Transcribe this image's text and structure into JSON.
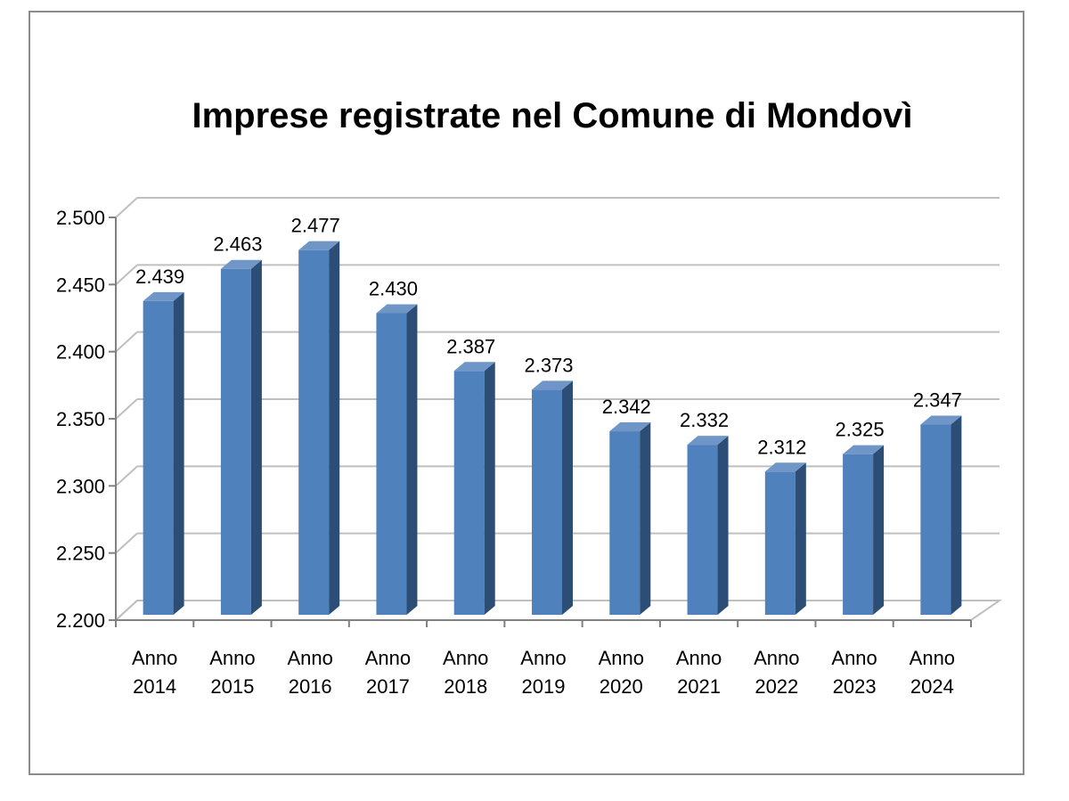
{
  "chart_data": {
    "type": "bar",
    "title": "Imprese registrate nel Comune di Mondovì",
    "xlabel": "",
    "ylabel": "",
    "categories": [
      [
        "Anno",
        "2014"
      ],
      [
        "Anno",
        "2015"
      ],
      [
        "Anno",
        "2016"
      ],
      [
        "Anno",
        "2017"
      ],
      [
        "Anno",
        "2018"
      ],
      [
        "Anno",
        "2019"
      ],
      [
        "Anno",
        "2020"
      ],
      [
        "Anno",
        "2021"
      ],
      [
        "Anno",
        "2022"
      ],
      [
        "Anno",
        "2023"
      ],
      [
        "Anno",
        "2024"
      ]
    ],
    "values": [
      2439,
      2463,
      2477,
      2430,
      2387,
      2373,
      2342,
      2332,
      2312,
      2325,
      2347
    ],
    "value_labels": [
      "2.439",
      "2.463",
      "2.477",
      "2.430",
      "2.387",
      "2.373",
      "2.342",
      "2.332",
      "2.312",
      "2.325",
      "2.347"
    ],
    "ylim": [
      2200,
      2500
    ],
    "y_ticks": [
      2200,
      2250,
      2300,
      2350,
      2400,
      2450,
      2500
    ],
    "y_tick_labels": [
      "2.200",
      "2.250",
      "2.300",
      "2.350",
      "2.400",
      "2.450",
      "2.500"
    ],
    "grid": true,
    "legend": "none",
    "style": "3d-column",
    "colors": {
      "bar_front": "#4f81bd",
      "bar_side": "#2c4d75",
      "bar_top": "#7096c8",
      "grid": "#bfbfbf",
      "axis": "#808080",
      "frame": "#8c8c8c"
    }
  }
}
